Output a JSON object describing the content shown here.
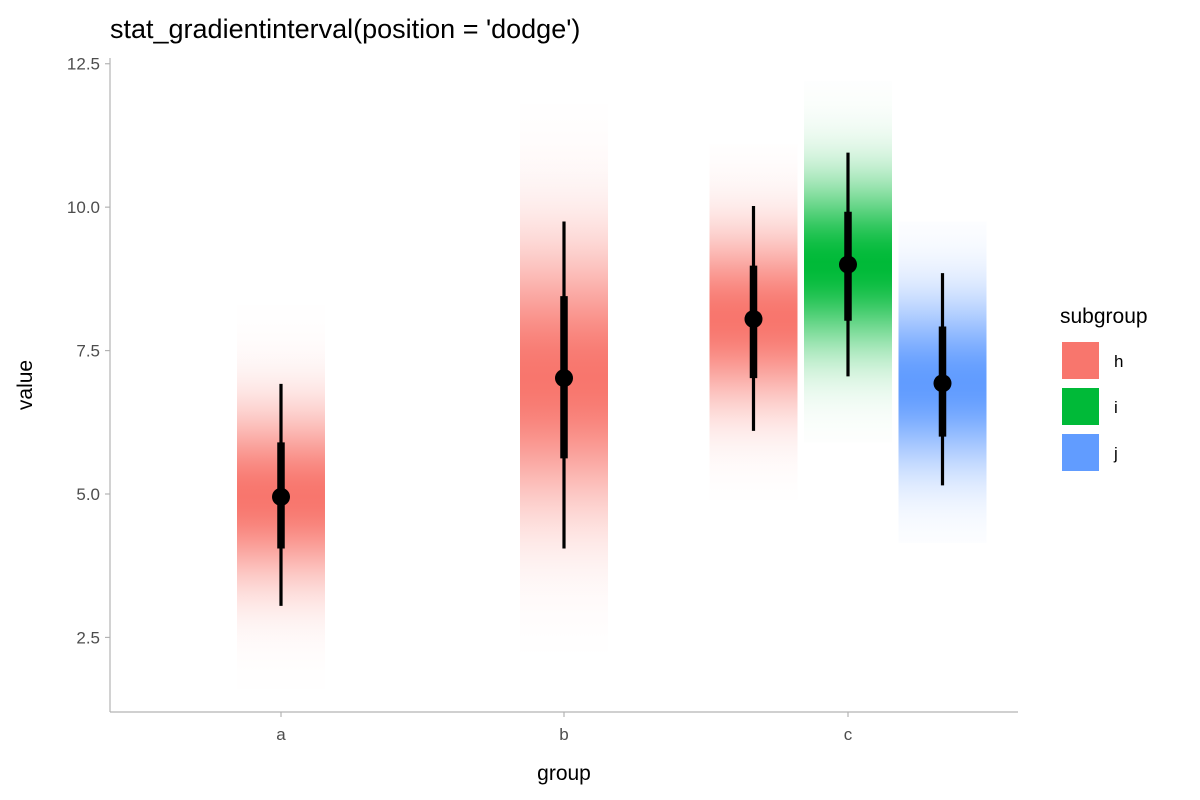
{
  "chart_data": {
    "type": "gradientinterval",
    "title": "stat_gradientinterval(position = 'dodge')",
    "xlabel": "group",
    "ylabel": "value",
    "categories": [
      "a",
      "b",
      "c"
    ],
    "ylim": [
      1.2,
      12.6
    ],
    "yticks": [
      2.5,
      5.0,
      7.5,
      10.0,
      12.5
    ],
    "ytick_labels": [
      "2.5",
      "5.0",
      "7.5",
      "10.0",
      "12.5"
    ],
    "grid": false,
    "legend": {
      "title": "subgroup",
      "placement": "right",
      "entries": [
        {
          "label": "h",
          "color": "#F8766D"
        },
        {
          "label": "i",
          "color": "#00BA38"
        },
        {
          "label": "j",
          "color": "#619CFF"
        }
      ]
    },
    "series": [
      {
        "name": "h",
        "color": "#F8766D",
        "group": "a",
        "slot": 0,
        "slots": 1,
        "median": 4.95,
        "inner": [
          4.05,
          5.9
        ],
        "outer": [
          3.05,
          6.92
        ],
        "sd": 1.0,
        "ylo": 1.6,
        "yhi": 8.3
      },
      {
        "name": "h",
        "color": "#F8766D",
        "group": "b",
        "slot": 0,
        "slots": 1,
        "median": 7.02,
        "inner": [
          5.62,
          8.45
        ],
        "outer": [
          4.05,
          9.75
        ],
        "sd": 1.5,
        "ylo": 2.25,
        "yhi": 11.8
      },
      {
        "name": "h",
        "color": "#F8766D",
        "group": "c",
        "slot": 0,
        "slots": 3,
        "median": 8.05,
        "inner": [
          7.02,
          8.98
        ],
        "outer": [
          6.1,
          10.02
        ],
        "sd": 1.0,
        "ylo": 4.9,
        "yhi": 11.1
      },
      {
        "name": "i",
        "color": "#00BA38",
        "group": "c",
        "slot": 1,
        "slots": 3,
        "median": 9.0,
        "inner": [
          8.02,
          9.92
        ],
        "outer": [
          7.05,
          10.95
        ],
        "sd": 1.0,
        "ylo": 5.9,
        "yhi": 12.2
      },
      {
        "name": "j",
        "color": "#619CFF",
        "group": "c",
        "slot": 2,
        "slots": 3,
        "median": 6.93,
        "inner": [
          6.0,
          7.92
        ],
        "outer": [
          5.15,
          8.85
        ],
        "sd": 1.0,
        "ylo": 4.15,
        "yhi": 9.75
      }
    ]
  }
}
